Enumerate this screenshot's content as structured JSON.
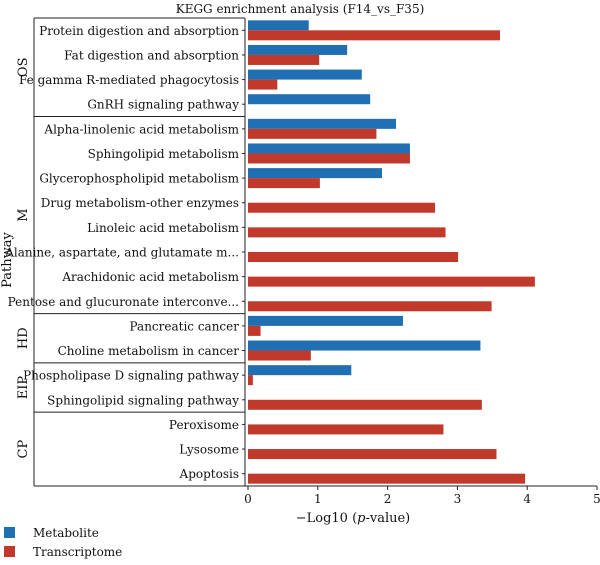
{
  "chart_data": {
    "type": "bar",
    "orientation": "horizontal",
    "title": "KEGG enrichment analysis (F14_vs_F35)",
    "xlabel": "−Log10 (p-value)",
    "ylabel": "Pathway",
    "xlim": [
      0,
      5
    ],
    "xticks": [
      "0",
      "1",
      "2",
      "3",
      "4",
      "5"
    ],
    "legend_position": "bottom-left",
    "colors": {
      "Metabolite": "#1f6fb2",
      "Transcriptome": "#c0392b"
    },
    "series": [
      {
        "name": "Metabolite",
        "values": [
          0.87,
          1.42,
          1.63,
          1.75,
          2.12,
          2.32,
          1.92,
          null,
          null,
          null,
          null,
          null,
          2.22,
          3.33,
          1.48,
          null,
          null,
          null,
          null
        ]
      },
      {
        "name": "Transcriptome",
        "values": [
          3.61,
          1.02,
          0.42,
          null,
          1.84,
          2.32,
          1.03,
          2.68,
          2.83,
          3.01,
          4.11,
          3.49,
          0.18,
          0.9,
          0.07,
          3.35,
          2.8,
          3.56,
          3.97
        ]
      }
    ],
    "categories": [
      "Protein digestion and absorption",
      "Fat digestion and absorption",
      "Fe gamma R-mediated phagocytosis",
      "GnRH signaling pathway",
      "Alpha-linolenic acid metabolism",
      "Sphingolipid metabolism",
      "Glycerophospholipid metabolism",
      "Drug metabolism-other enzymes",
      "Linoleic acid metabolism",
      "Alanine, aspartate, and glutamate m...",
      "Arachidonic acid metabolism",
      "Pentose and glucuronate interconve...",
      "Pancreatic cancer",
      "Choline metabolism in cancer",
      "Phospholipase D signaling pathway",
      "Sphingolipid signaling pathway",
      "Peroxisome",
      "Lysosome",
      "Apoptosis"
    ],
    "groups": [
      {
        "label": "OS",
        "start": 0,
        "end": 3
      },
      {
        "label": "M",
        "start": 4,
        "end": 11
      },
      {
        "label": "HD",
        "start": 12,
        "end": 13
      },
      {
        "label": "EIP",
        "start": 14,
        "end": 15
      },
      {
        "label": "CP",
        "start": 16,
        "end": 18
      }
    ]
  }
}
